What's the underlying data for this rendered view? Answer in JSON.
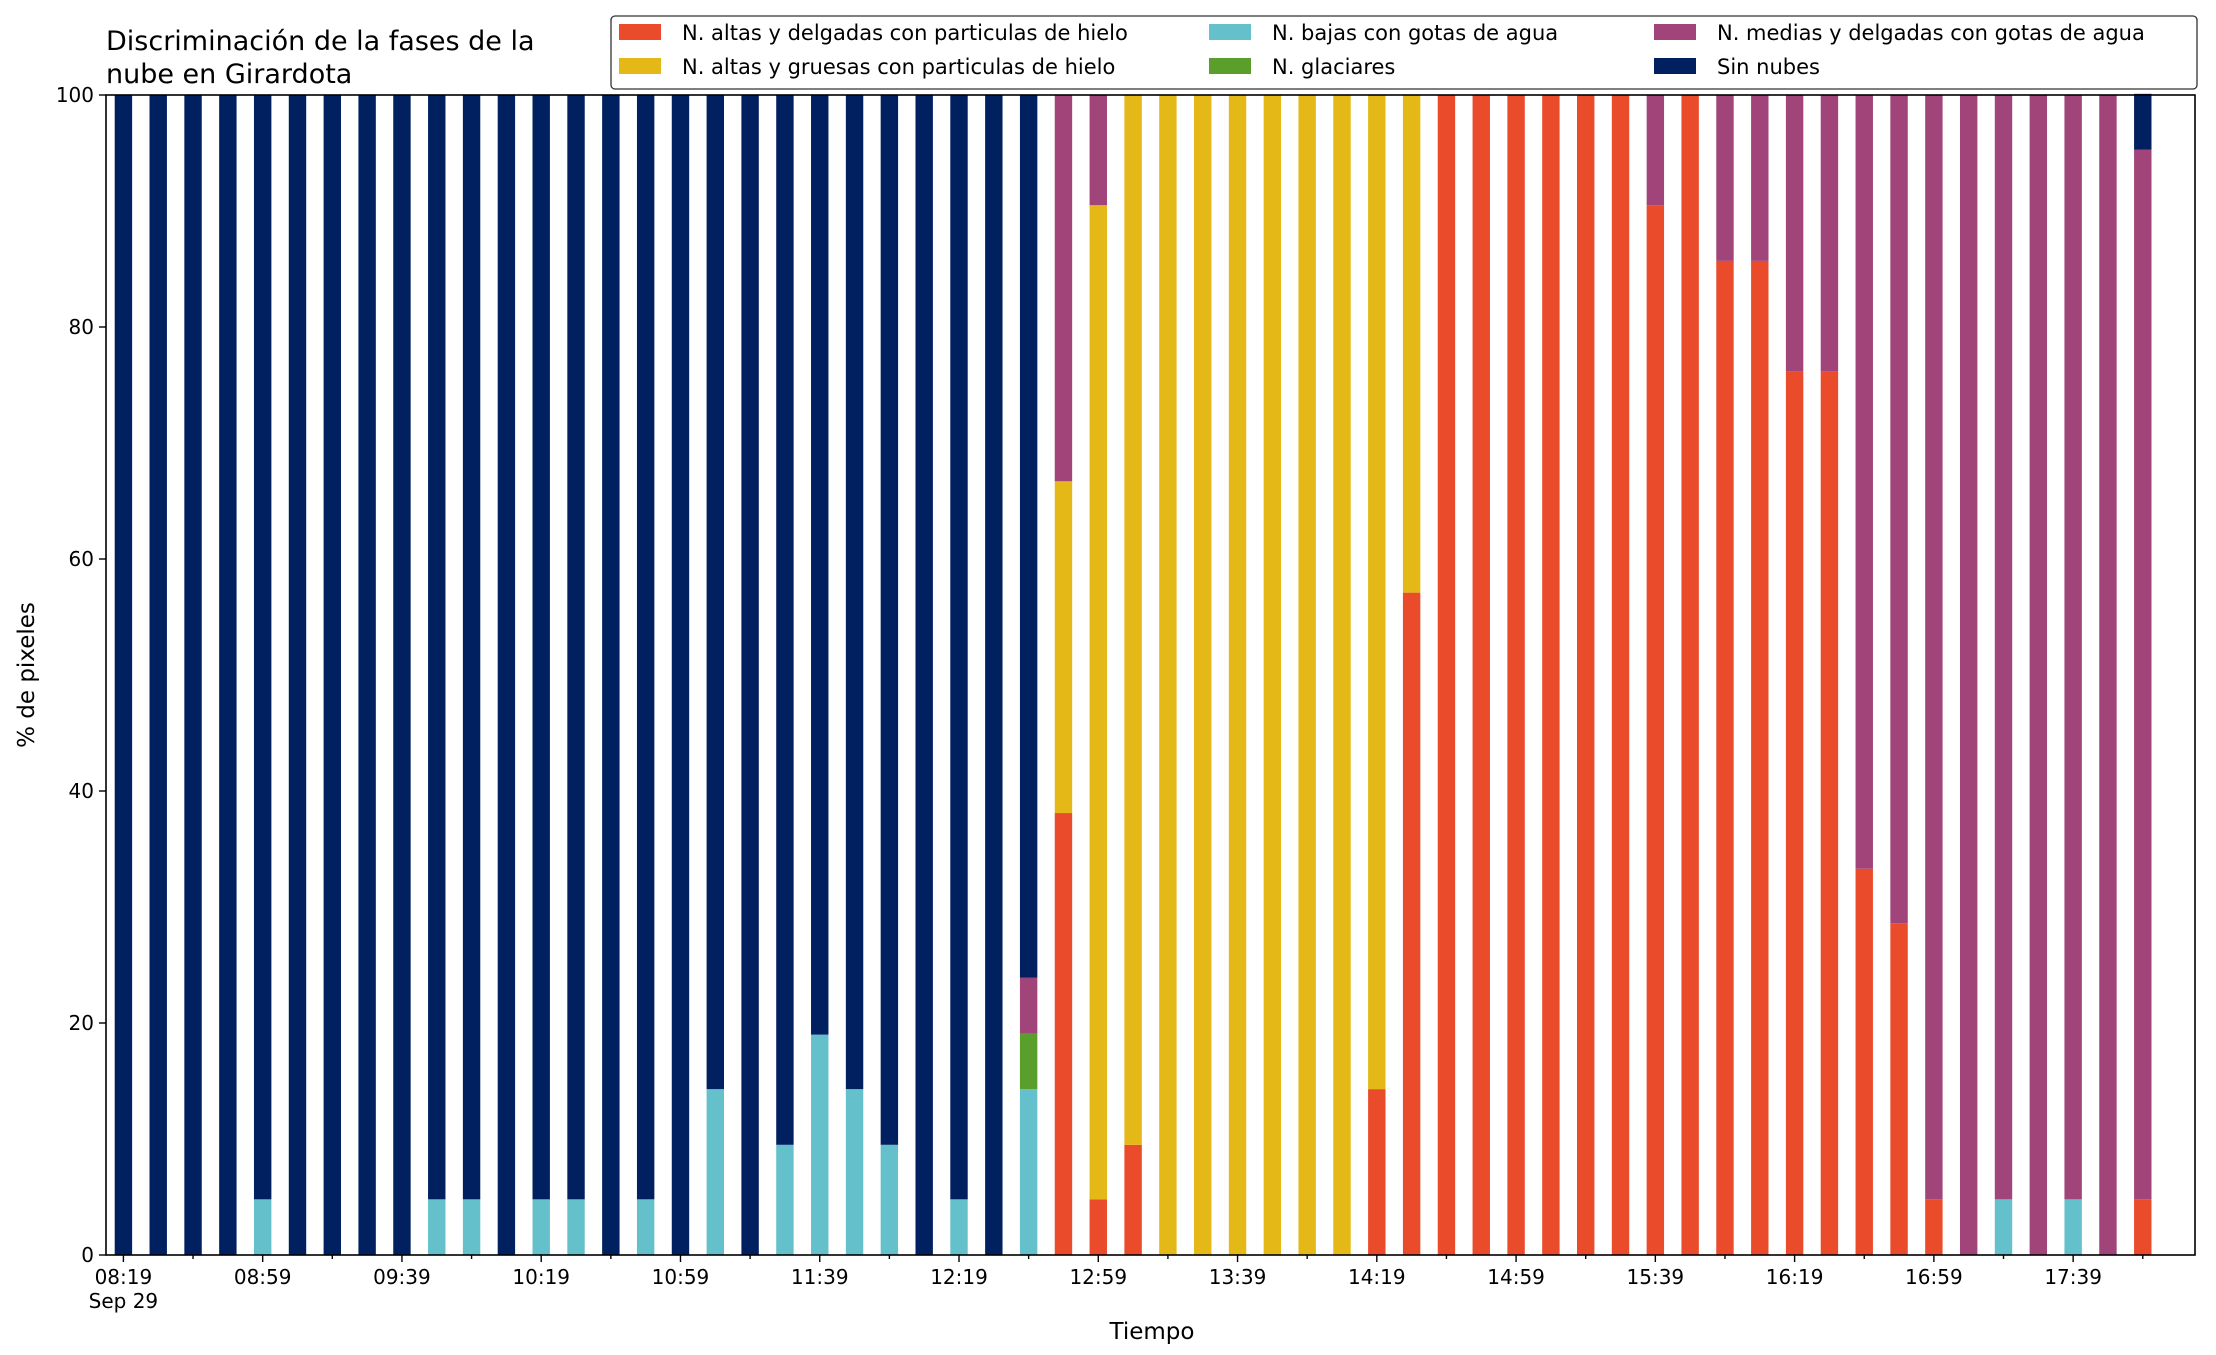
{
  "chart_data": {
    "type": "bar",
    "stacked": true,
    "title_lines": [
      "Discriminación de la fases de la",
      "nube en Girardota"
    ],
    "xlabel": "Tiempo",
    "ylabel": "% de pixeles",
    "ylim": [
      0,
      100
    ],
    "yticks": [
      0,
      20,
      40,
      60,
      80,
      100
    ],
    "grid": false,
    "legend_position": "top-right",
    "x_tick_labels": [
      {
        "index": 0,
        "label": "08:19"
      },
      {
        "index": 4,
        "label": "08:59"
      },
      {
        "index": 8,
        "label": "09:39"
      },
      {
        "index": 12,
        "label": "10:19"
      },
      {
        "index": 16,
        "label": "10:59"
      },
      {
        "index": 20,
        "label": "11:39"
      },
      {
        "index": 24,
        "label": "12:19"
      },
      {
        "index": 28,
        "label": "12:59"
      },
      {
        "index": 32,
        "label": "13:39"
      },
      {
        "index": 36,
        "label": "14:19"
      },
      {
        "index": 40,
        "label": "14:59"
      },
      {
        "index": 44,
        "label": "15:39"
      },
      {
        "index": 48,
        "label": "16:19"
      },
      {
        "index": 52,
        "label": "16:59"
      },
      {
        "index": 56,
        "label": "17:39"
      }
    ],
    "x_date_label": "Sep 29",
    "series": [
      {
        "name": "N. altas y delgadas con particulas de hielo",
        "color": "#ea4b2b",
        "values": [
          0,
          0,
          0,
          0,
          0,
          0,
          0,
          0,
          0,
          0,
          0,
          0,
          0,
          0,
          0,
          0,
          0,
          0,
          0,
          0,
          0,
          0,
          0,
          0,
          0,
          0,
          0,
          38.1,
          4.8,
          9.5,
          0,
          0,
          0,
          0,
          0,
          0,
          14.3,
          57.1,
          100,
          100,
          100,
          100,
          100,
          100,
          90.5,
          100,
          85.7,
          85.7,
          76.2,
          76.2,
          33.3,
          28.6,
          4.8,
          0,
          0,
          0,
          0,
          0,
          4.8
        ]
      },
      {
        "name": "N. altas y gruesas con particulas de hielo",
        "color": "#e3b817",
        "values": [
          0,
          0,
          0,
          0,
          0,
          0,
          0,
          0,
          0,
          0,
          0,
          0,
          0,
          0,
          0,
          0,
          0,
          0,
          0,
          0,
          0,
          0,
          0,
          0,
          0,
          0,
          0,
          28.6,
          85.7,
          90.5,
          100,
          100,
          100,
          100,
          100,
          100,
          85.7,
          42.9,
          0,
          0,
          0,
          0,
          0,
          0,
          0,
          0,
          0,
          0,
          0,
          0,
          0,
          0,
          0,
          0,
          0,
          0,
          0,
          0,
          0
        ]
      },
      {
        "name": "N. bajas con gotas de agua",
        "color": "#64c0ca",
        "values": [
          0,
          0,
          0,
          0,
          4.8,
          0,
          0,
          0,
          0,
          4.8,
          4.8,
          0,
          4.8,
          4.8,
          0,
          4.8,
          0,
          14.3,
          0,
          9.5,
          19.0,
          14.3,
          9.5,
          0,
          4.8,
          0,
          14.3,
          0,
          0,
          0,
          0,
          0,
          0,
          0,
          0,
          0,
          0,
          0,
          0,
          0,
          0,
          0,
          0,
          0,
          0,
          0,
          0,
          0,
          0,
          0,
          0,
          0,
          0,
          0,
          4.8,
          0,
          4.8,
          0,
          0
        ]
      },
      {
        "name": "N. glaciares",
        "color": "#5a9e2c",
        "values": [
          0,
          0,
          0,
          0,
          0,
          0,
          0,
          0,
          0,
          0,
          0,
          0,
          0,
          0,
          0,
          0,
          0,
          0,
          0,
          0,
          0,
          0,
          0,
          0,
          0,
          0,
          4.8,
          0,
          0,
          0,
          0,
          0,
          0,
          0,
          0,
          0,
          0,
          0,
          0,
          0,
          0,
          0,
          0,
          0,
          0,
          0,
          0,
          0,
          0,
          0,
          0,
          0,
          0,
          0,
          0,
          0,
          0,
          0,
          0
        ]
      },
      {
        "name": "N. medias y delgadas con gotas de agua",
        "color": "#a0447a",
        "values": [
          0,
          0,
          0,
          0,
          0,
          0,
          0,
          0,
          0,
          0,
          0,
          0,
          0,
          0,
          0,
          0,
          0,
          0,
          0,
          0,
          0,
          0,
          0,
          0,
          0,
          0,
          4.8,
          33.3,
          9.5,
          0,
          0,
          0,
          0,
          0,
          0,
          0,
          0,
          0,
          0,
          0,
          0,
          0,
          0,
          0,
          9.5,
          0,
          14.3,
          14.3,
          23.8,
          23.8,
          66.7,
          71.4,
          95.2,
          100,
          95.2,
          100,
          95.2,
          100,
          90.5
        ]
      },
      {
        "name": "Sin nubes",
        "color": "#002060",
        "values": [
          100,
          100,
          100,
          100,
          95.2,
          100,
          100,
          100,
          100,
          95.2,
          95.2,
          100,
          95.2,
          95.2,
          100,
          95.2,
          100,
          85.7,
          100,
          90.5,
          81.0,
          85.7,
          90.5,
          100,
          95.2,
          100,
          76.1,
          0,
          0,
          0,
          0,
          0,
          0,
          0,
          0,
          0,
          0,
          0,
          0,
          0,
          0,
          0,
          0,
          0,
          0,
          0,
          0,
          0,
          0,
          0,
          0,
          0,
          0,
          0,
          0,
          0,
          0,
          0,
          4.8
        ]
      }
    ],
    "legend_order": [
      0,
      1,
      2,
      3,
      4,
      5
    ],
    "legend_columns": 3
  }
}
